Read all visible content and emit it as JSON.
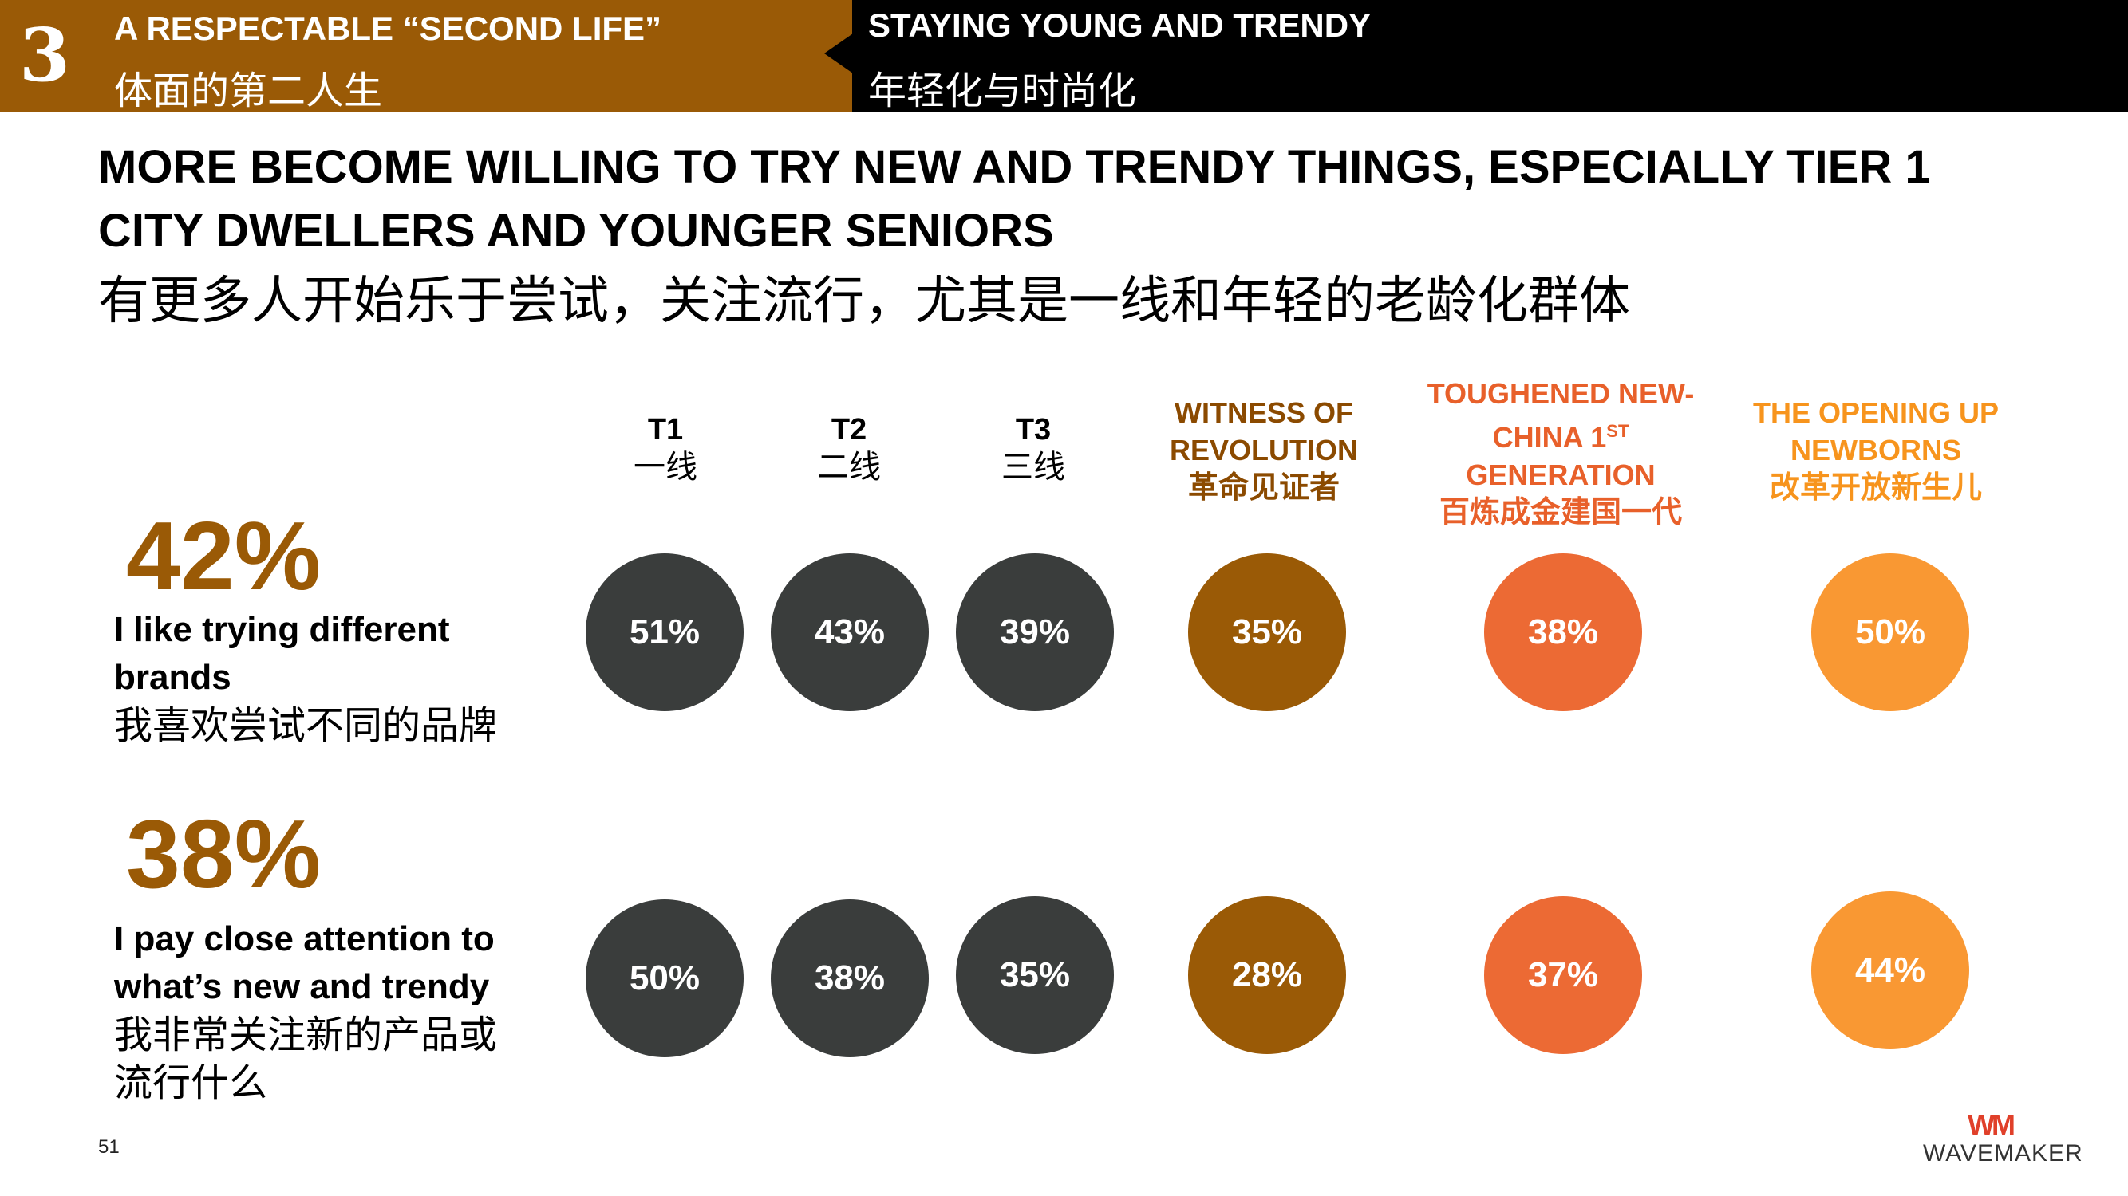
{
  "header": {
    "section_number": "3",
    "left_title_en": "A RESPECTABLE “SECOND LIFE”",
    "left_title_cn": "体面的第二人生",
    "right_title_en": "STAYING YOUNG AND TRENDY",
    "right_title_cn": "年轻化与时尚化"
  },
  "title": {
    "en_line1": "MORE BECOME WILLING TO TRY NEW AND TRENDY THINGS, ESPECIALLY TIER 1",
    "en_line2": "CITY DWELLERS AND YOUNGER SENIORS",
    "cn": "有更多人开始乐于尝试，关注流行，尤其是一线和年轻的老龄化群体"
  },
  "columns": [
    {
      "line1": "T1",
      "line2": "一线",
      "color": "#000000"
    },
    {
      "line1": "T2",
      "line2": "二线",
      "color": "#000000"
    },
    {
      "line1": "T3",
      "line2": "三线",
      "color": "#000000"
    },
    {
      "line1": "WITNESS OF",
      "line2": "REVOLUTION",
      "line3": "革命见证者",
      "color": "#8b4a00"
    },
    {
      "line1": "TOUGHENED NEW-",
      "line2a": "CHINA 1",
      "line2sup": "ST",
      "line3": "GENERATION",
      "line4": "百炼成金建国一代",
      "color": "#e8602a"
    },
    {
      "line1": "THE OPENING UP",
      "line2": "NEWBORNS",
      "line3": "改革开放新生儿",
      "color": "#f7941d"
    }
  ],
  "bubble_colors": [
    "#3a3d3c",
    "#3a3d3c",
    "#3a3d3c",
    "#9a5a06",
    "#ec6a34",
    "#f99833"
  ],
  "rows": [
    {
      "overall": "42%",
      "label_en_1": "I like trying different",
      "label_en_2": "brands",
      "label_cn_1": "我喜欢尝试不同的品牌",
      "values": [
        "51%",
        "43%",
        "39%",
        "35%",
        "38%",
        "50%"
      ]
    },
    {
      "overall": "38%",
      "label_en_1": "I pay close attention to",
      "label_en_2": "what’s new and trendy",
      "label_cn_1": "我非常关注新的产品或",
      "label_cn_2": "流行什么",
      "values": [
        "50%",
        "38%",
        "35%",
        "28%",
        "37%",
        "44%"
      ]
    }
  ],
  "footer": {
    "page_number": "51",
    "logo_mark": "WM",
    "logo_text": "WAVEMAKER"
  }
}
